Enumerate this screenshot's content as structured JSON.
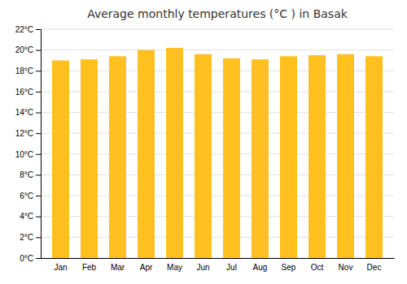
{
  "chart_data": {
    "type": "bar",
    "title": "Average monthly temperatures (°C ) in Basak",
    "categories": [
      "Jan",
      "Feb",
      "Mar",
      "Apr",
      "May",
      "Jun",
      "Jul",
      "Aug",
      "Sep",
      "Oct",
      "Nov",
      "Dec"
    ],
    "values": [
      19.0,
      19.1,
      19.4,
      20.0,
      20.2,
      19.6,
      19.2,
      19.1,
      19.4,
      19.5,
      19.6,
      19.4
    ],
    "color": "#FFC020",
    "ylim": [
      0,
      22
    ],
    "yticks": [
      {
        "value": 0,
        "label": "0°C"
      },
      {
        "value": 2,
        "label": "2°C"
      },
      {
        "value": 4,
        "label": "4°C"
      },
      {
        "value": 6,
        "label": "6°C"
      },
      {
        "value": 8,
        "label": "8°C"
      },
      {
        "value": 10,
        "label": "10°C"
      },
      {
        "value": 12,
        "label": "12°C"
      },
      {
        "value": 14,
        "label": "14°C"
      },
      {
        "value": 16,
        "label": "16°C"
      },
      {
        "value": 18,
        "label": "18°C"
      },
      {
        "value": 20,
        "label": "20°C"
      },
      {
        "value": 22,
        "label": "22°C"
      }
    ],
    "grid": true
  }
}
